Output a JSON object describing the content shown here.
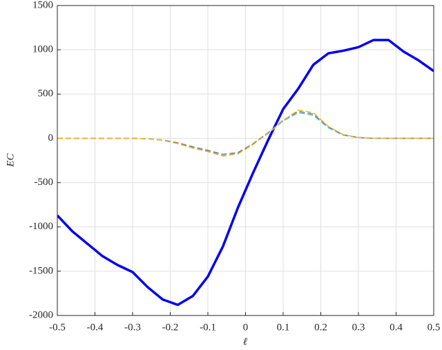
{
  "chart_data": {
    "type": "line",
    "x_label": "ℓ",
    "y_label": "EC",
    "x": [
      -0.5,
      -0.46,
      -0.42,
      -0.38,
      -0.34,
      -0.3,
      -0.26,
      -0.22,
      -0.18,
      -0.14,
      -0.1,
      -0.06,
      -0.02,
      0.02,
      0.06,
      0.1,
      0.14,
      0.18,
      0.22,
      0.26,
      0.3,
      0.34,
      0.38,
      0.42,
      0.46,
      0.5
    ],
    "series": [
      {
        "color": "#0000ee",
        "line_style": "solid",
        "values": [
          -870,
          -1050,
          -1190,
          -1330,
          -1430,
          -1510,
          -1680,
          -1820,
          -1880,
          -1780,
          -1560,
          -1220,
          -780,
          -390,
          -20,
          330,
          560,
          830,
          960,
          990,
          1030,
          1110,
          1110,
          980,
          880,
          760
        ]
      },
      {
        "color": "#4dbeee",
        "line_style": "dashed",
        "values": [
          0,
          0,
          0,
          0,
          0,
          0,
          -5,
          -20,
          -55,
          -105,
          -145,
          -195,
          -170,
          -65,
          55,
          195,
          290,
          260,
          120,
          35,
          8,
          0,
          0,
          0,
          0,
          0
        ]
      },
      {
        "color": "#7f7f7f",
        "line_style": "dashed",
        "values": [
          0,
          0,
          0,
          0,
          0,
          0,
          -5,
          -18,
          -50,
          -95,
          -135,
          -180,
          -160,
          -60,
          65,
          205,
          305,
          275,
          130,
          40,
          10,
          0,
          0,
          0,
          0,
          0
        ]
      },
      {
        "color": "#edb120",
        "line_style": "dashed",
        "values": [
          0,
          0,
          0,
          0,
          0,
          0,
          -5,
          -22,
          -60,
          -110,
          -150,
          -200,
          -175,
          -70,
          60,
          200,
          320,
          290,
          135,
          42,
          10,
          0,
          0,
          0,
          0,
          0
        ]
      }
    ],
    "xlim": [
      -0.5,
      0.5
    ],
    "xticks": [
      -0.5,
      -0.4,
      -0.3,
      -0.2,
      -0.1,
      0,
      0.1,
      0.2,
      0.3,
      0.4,
      0.5
    ],
    "ylim": [
      -2000,
      1500
    ],
    "yticks": [
      -2000,
      -1500,
      -1000,
      -500,
      0,
      500,
      1000,
      1500
    ],
    "grid": true
  }
}
